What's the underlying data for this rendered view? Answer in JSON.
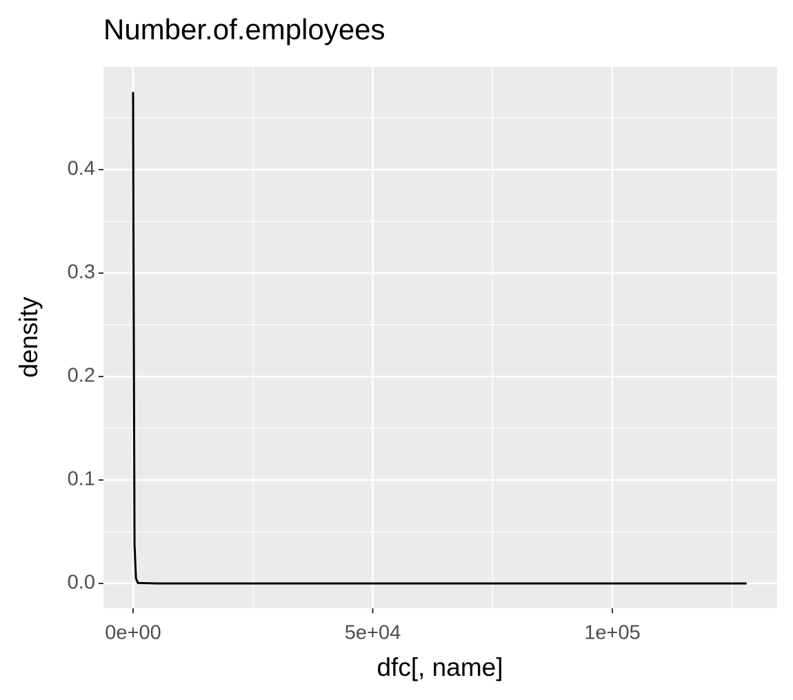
{
  "chart_data": {
    "type": "line",
    "title": "Number.of.employees",
    "x_label": "dfc[, name]",
    "y_label": "density",
    "series": [
      {
        "color": "#000000",
        "x": [
          1,
          100,
          300,
          600,
          1000,
          5000,
          128000
        ],
        "values": [
          0.475,
          0.3,
          0.037,
          0.005,
          0.0005,
          0,
          0
        ]
      }
    ],
    "xlim": [
      -6187,
      134388
    ],
    "ylim": [
      -0.024,
      0.4993
    ],
    "xticks": [
      {
        "value": 0,
        "label": "0e+00"
      },
      {
        "value": 50000,
        "label": "5e+04"
      },
      {
        "value": 100000,
        "label": "1e+05"
      }
    ],
    "yticks": [
      {
        "value": 0,
        "label": "0.0"
      },
      0.1,
      0.2,
      0.3,
      0.4
    ],
    "xminor": [
      25000,
      75000,
      125000
    ],
    "yminor": [
      0.05,
      0.15,
      0.25,
      0.35,
      0.45
    ],
    "panel_color": "#ebebeb",
    "grid": true
  }
}
